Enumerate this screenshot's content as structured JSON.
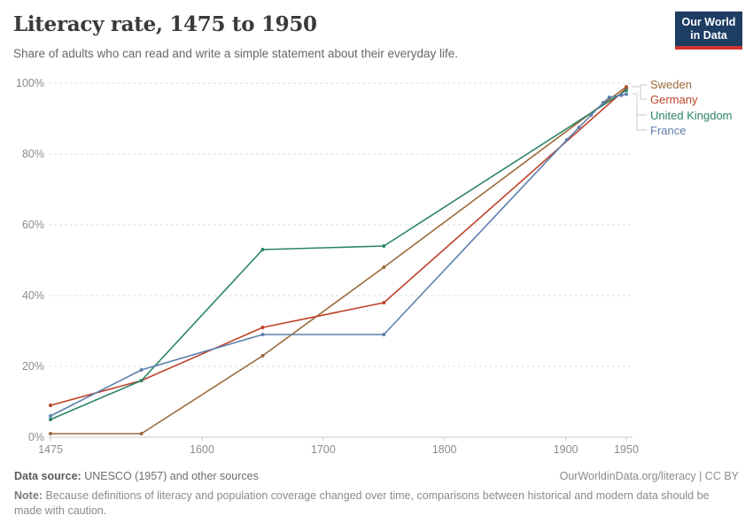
{
  "header": {
    "title": "Literacy rate, 1475 to 1950",
    "subtitle": "Share of adults who can read and write a simple statement about their everyday life.",
    "logo": {
      "line1": "Our World",
      "line2": "in Data",
      "bg_color": "#1d3d63",
      "bar_color": "#d0342c"
    }
  },
  "chart_data": {
    "type": "line",
    "title": "Literacy rate, 1475 to 1950",
    "xlabel": "",
    "ylabel": "",
    "x_range": [
      1475,
      1950
    ],
    "ylim": [
      0,
      100
    ],
    "grid": "horizontal-dashed",
    "legend_position": "right",
    "xticks": [
      {
        "value": 1475,
        "label": "1475"
      },
      {
        "value": 1600,
        "label": "1600"
      },
      {
        "value": 1700,
        "label": "1700"
      },
      {
        "value": 1800,
        "label": "1800"
      },
      {
        "value": 1900,
        "label": "1900"
      },
      {
        "value": 1950,
        "label": "1950"
      }
    ],
    "yticks": [
      {
        "value": 0,
        "label": "0%"
      },
      {
        "value": 20,
        "label": "20%"
      },
      {
        "value": 40,
        "label": "40%"
      },
      {
        "value": 60,
        "label": "60%"
      },
      {
        "value": 80,
        "label": "80%"
      },
      {
        "value": 100,
        "label": "100%"
      }
    ],
    "series": [
      {
        "name": "Sweden",
        "color": "#9c6a3c",
        "points": [
          [
            1475,
            1
          ],
          [
            1550,
            1
          ],
          [
            1650,
            23
          ],
          [
            1750,
            48
          ],
          [
            1950,
            99
          ]
        ]
      },
      {
        "name": "Germany",
        "color": "#be4229",
        "points": [
          [
            1475,
            9
          ],
          [
            1550,
            16
          ],
          [
            1650,
            31
          ],
          [
            1750,
            38
          ],
          [
            1950,
            98.5
          ]
        ]
      },
      {
        "name": "United Kingdom",
        "color": "#2c8465",
        "points": [
          [
            1475,
            5
          ],
          [
            1550,
            16
          ],
          [
            1650,
            53
          ],
          [
            1750,
            54
          ],
          [
            1950,
            98
          ]
        ]
      },
      {
        "name": "France",
        "color": "#5e7fac",
        "points": [
          [
            1475,
            6
          ],
          [
            1550,
            19
          ],
          [
            1650,
            29
          ],
          [
            1750,
            29
          ],
          [
            1901,
            84
          ],
          [
            1911,
            87.5
          ],
          [
            1921,
            91
          ],
          [
            1931,
            94.5
          ],
          [
            1936,
            96
          ],
          [
            1946,
            96.6
          ],
          [
            1950,
            96.9
          ]
        ]
      }
    ]
  },
  "footer": {
    "data_source_label": "Data source:",
    "data_source_value": " UNESCO (1957) and other sources",
    "link": "OurWorldinData.org/literacy | CC BY",
    "note_label": "Note:",
    "note_text": " Because definitions of literacy and population coverage changed over time, comparisons between historical and modern data should be made with caution."
  }
}
